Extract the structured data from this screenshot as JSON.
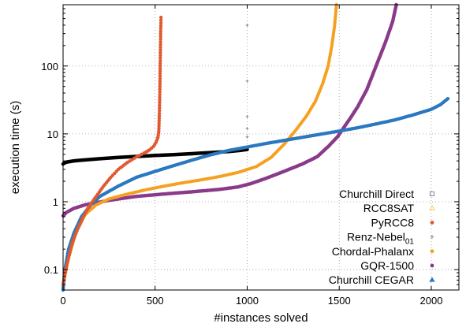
{
  "chart_data": {
    "type": "scatter",
    "xlabel": "#instances solved",
    "ylabel": "execution time (s)",
    "xlim": [
      0,
      2150
    ],
    "ylim": [
      0.05,
      800
    ],
    "y_scale": "log",
    "x_ticks": [
      {
        "value": 0,
        "label": "0"
      },
      {
        "value": 500,
        "label": "500"
      },
      {
        "value": 1000,
        "label": "1000"
      },
      {
        "value": 1500,
        "label": "1500"
      },
      {
        "value": 2000,
        "label": "2000"
      }
    ],
    "y_ticks": [
      {
        "value": 0.1,
        "label": "0.1"
      },
      {
        "value": 1,
        "label": "1"
      },
      {
        "value": 10,
        "label": "10"
      },
      {
        "value": 100,
        "label": "100"
      }
    ],
    "grid": "dotted vertical and horizontal at major ticks",
    "legend_position": "bottom-right",
    "series": [
      {
        "name": "Churchill Direct",
        "color": "#000000",
        "marker": "square",
        "points": [
          [
            0,
            3.6
          ],
          [
            5,
            3.7
          ],
          [
            20,
            3.85
          ],
          [
            60,
            4.0
          ],
          [
            100,
            4.1
          ],
          [
            200,
            4.3
          ],
          [
            300,
            4.5
          ],
          [
            400,
            4.65
          ],
          [
            500,
            4.8
          ],
          [
            600,
            4.95
          ],
          [
            700,
            5.1
          ],
          [
            800,
            5.3
          ],
          [
            900,
            5.5
          ],
          [
            960,
            5.7
          ],
          [
            1000,
            5.9
          ]
        ]
      },
      {
        "name": "RCC8SAT",
        "color": "#f0c040",
        "marker": "triangle",
        "points": []
      },
      {
        "name": "PyRCC8",
        "color": "#e05a30",
        "marker": "circle",
        "points": [
          [
            0,
            0.06
          ],
          [
            15,
            0.1
          ],
          [
            30,
            0.15
          ],
          [
            50,
            0.25
          ],
          [
            80,
            0.4
          ],
          [
            110,
            0.6
          ],
          [
            140,
            0.85
          ],
          [
            180,
            1.2
          ],
          [
            220,
            1.7
          ],
          [
            260,
            2.3
          ],
          [
            300,
            3.0
          ],
          [
            350,
            3.8
          ],
          [
            400,
            4.6
          ],
          [
            440,
            5.2
          ],
          [
            470,
            5.8
          ],
          [
            490,
            6.5
          ],
          [
            505,
            7.5
          ],
          [
            515,
            8.8
          ],
          [
            520,
            11
          ],
          [
            523,
            20
          ],
          [
            526,
            50
          ],
          [
            528,
            120
          ],
          [
            530,
            300
          ],
          [
            532,
            520
          ]
        ]
      },
      {
        "name": "Renz-Nebel01",
        "name_main": "Renz-Nebel",
        "name_sub": "01",
        "color": "#777777",
        "marker": "plus",
        "points": [
          [
            1000,
            400
          ],
          [
            1000,
            60
          ],
          [
            1000,
            18
          ],
          [
            1000,
            12
          ],
          [
            1000,
            9
          ]
        ]
      },
      {
        "name": "Chordal-Phalanx",
        "color": "#f5a020",
        "marker": "circle",
        "points": [
          [
            0,
            0.06
          ],
          [
            30,
            0.15
          ],
          [
            70,
            0.35
          ],
          [
            120,
            0.65
          ],
          [
            180,
            0.9
          ],
          [
            250,
            1.1
          ],
          [
            350,
            1.3
          ],
          [
            450,
            1.5
          ],
          [
            550,
            1.7
          ],
          [
            650,
            1.9
          ],
          [
            750,
            2.1
          ],
          [
            850,
            2.35
          ],
          [
            950,
            2.7
          ],
          [
            1050,
            3.3
          ],
          [
            1130,
            4.5
          ],
          [
            1200,
            7
          ],
          [
            1260,
            11
          ],
          [
            1320,
            18
          ],
          [
            1370,
            30
          ],
          [
            1410,
            55
          ],
          [
            1440,
            100
          ],
          [
            1460,
            200
          ],
          [
            1475,
            400
          ],
          [
            1485,
            800
          ]
        ]
      },
      {
        "name": "GQR-1500",
        "color": "#8a3a8a",
        "marker": "circle",
        "points": [
          [
            0,
            0.62
          ],
          [
            20,
            0.7
          ],
          [
            60,
            0.8
          ],
          [
            120,
            0.9
          ],
          [
            250,
            1.05
          ],
          [
            400,
            1.2
          ],
          [
            550,
            1.3
          ],
          [
            700,
            1.4
          ],
          [
            850,
            1.52
          ],
          [
            950,
            1.65
          ],
          [
            1020,
            1.85
          ],
          [
            1100,
            2.2
          ],
          [
            1200,
            2.8
          ],
          [
            1300,
            3.6
          ],
          [
            1380,
            4.6
          ],
          [
            1440,
            6.5
          ],
          [
            1490,
            9
          ],
          [
            1530,
            13
          ],
          [
            1560,
            17
          ],
          [
            1600,
            25
          ],
          [
            1650,
            45
          ],
          [
            1700,
            100
          ],
          [
            1750,
            220
          ],
          [
            1790,
            450
          ],
          [
            1810,
            800
          ]
        ]
      },
      {
        "name": "Churchill CEGAR",
        "color": "#2a78c0",
        "marker": "triangle",
        "points": [
          [
            0,
            0.05
          ],
          [
            10,
            0.1
          ],
          [
            30,
            0.2
          ],
          [
            60,
            0.35
          ],
          [
            100,
            0.6
          ],
          [
            150,
            0.9
          ],
          [
            200,
            1.2
          ],
          [
            300,
            1.7
          ],
          [
            400,
            2.3
          ],
          [
            500,
            2.8
          ],
          [
            600,
            3.4
          ],
          [
            700,
            4.1
          ],
          [
            800,
            4.9
          ],
          [
            900,
            5.7
          ],
          [
            1000,
            6.4
          ],
          [
            1100,
            7.2
          ],
          [
            1200,
            8.0
          ],
          [
            1300,
            8.9
          ],
          [
            1400,
            9.9
          ],
          [
            1500,
            11
          ],
          [
            1600,
            12.3
          ],
          [
            1700,
            14
          ],
          [
            1800,
            16
          ],
          [
            1900,
            19
          ],
          [
            2000,
            23
          ],
          [
            2050,
            27
          ],
          [
            2090,
            33
          ]
        ]
      }
    ]
  }
}
